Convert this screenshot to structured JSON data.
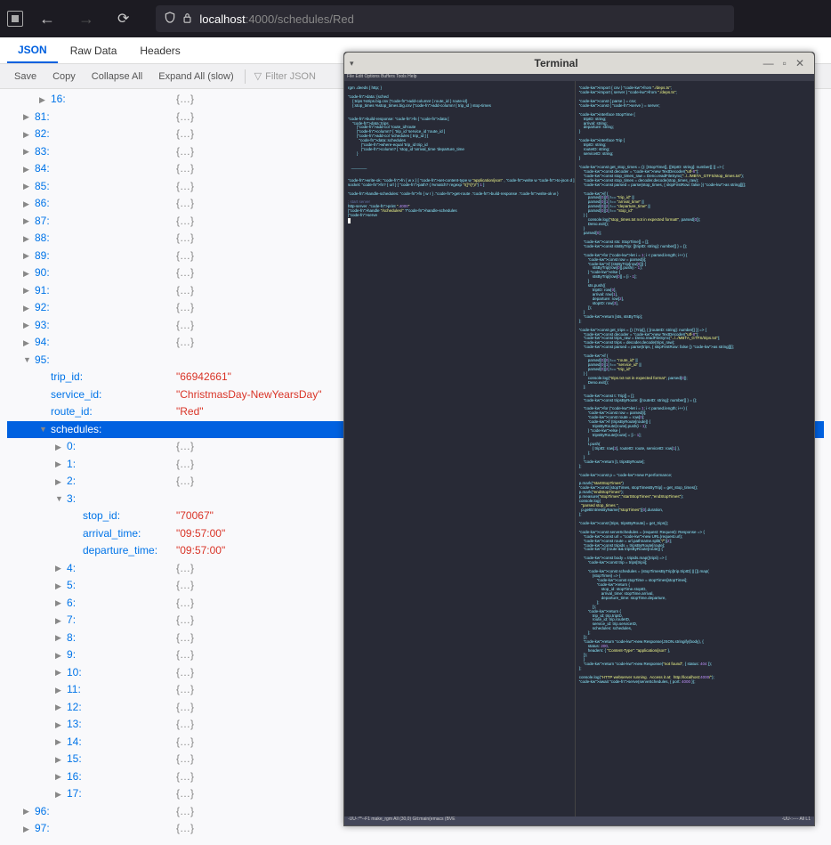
{
  "browser": {
    "url_host": "localhost",
    "url_port": ":4000",
    "url_path": "/schedules/Red"
  },
  "tabs": {
    "json": "JSON",
    "raw": "Raw Data",
    "headers": "Headers"
  },
  "actions": {
    "save": "Save",
    "copy": "Copy",
    "collapse": "Collapse All",
    "expand": "Expand All (slow)",
    "filter_placeholder": "Filter JSON"
  },
  "tree": {
    "collapsed_top": [
      {
        "idx": "16",
        "indent": 2
      }
    ],
    "collapsed_seq1": [
      "81",
      "82",
      "83",
      "84",
      "85",
      "86",
      "87",
      "88",
      "89",
      "90",
      "91",
      "92",
      "93",
      "94"
    ],
    "expanded95": {
      "idx": "95",
      "trip_id_k": "trip_id",
      "trip_id_v": "\"66942661\"",
      "service_id_k": "service_id",
      "service_id_v": "\"ChristmasDay-NewYearsDay\"",
      "route_id_k": "route_id",
      "route_id_v": "\"Red\"",
      "schedules_k": "schedules"
    },
    "sched_collapsed1": [
      "0",
      "1",
      "2"
    ],
    "sched3": {
      "idx": "3",
      "stop_id_k": "stop_id",
      "stop_id_v": "\"70067\"",
      "arrival_k": "arrival_time",
      "arrival_v": "\"09:57:00\"",
      "departure_k": "departure_time",
      "departure_v": "\"09:57:00\""
    },
    "sched_collapsed2": [
      "4",
      "5",
      "6",
      "7",
      "8",
      "9",
      "10",
      "11",
      "12",
      "13",
      "14",
      "15",
      "16",
      "17"
    ],
    "collapsed_seq2": [
      "96",
      "97"
    ],
    "placeholder": "{…}"
  },
  "terminal": {
    "title": "Terminal",
    "menu": "File Edit Options Buffers Tools Help",
    "statusbar_left": "-UU-:**--F1  make_rgm    All (30,0)   Git:main(emacs  (BVE",
    "statusbar_right": "                                    -UU-:----  All L1",
    "left_code": "rgm .deeds { http; }\n\ndata: {sched\n    {:trips %trips.big.csv |add-column! { route_id } route-id}\n    {:stop_times %stop_times.big.csv |add-column! { trip_id } stop-times\n\n\nbuild-response: fn { data [\n    data::trips\n        |add-col 'route_id'route\n        |column? [ 'trip_id 'service_id 'route_id ]\n        |add-col 'schedules [ trip_id ] {\n          data::schedules\n            |where-equal 'trip_id trip_id\n            |column? [ 'stop_id 'arrival_time 'departure_time\n        }\n\n\n   _______\n\n\nwrite-ok: fn { w x } [ set-content-type w \"application/json\" , write w to-json d ]\nsocket: fn? { url } [ path? (.%match? regexp \"/([^/]*)/\") 1 ]\n\nhandle-schedules: fn { w r } .get-route .build-response .write-ok w }\n\n; start server\nhttp-server .print \".4000\"\n|handle \"/schedules/\" ?handle-schedules\n|serve\n",
    "right_code": "import { csv } from \"./deps.ts\";\nimport { server } from \"./deps.ts\";\n\nconst { parse } = csv;\nconst { serve } = server;\n\ninterface StopTime {\n    tripID: string;\n    arrival: string;\n    departure: string;\n}\n\ninterface Trip {\n    tripID: string;\n    routeID: string;\n    serviceID: string;\n}\n\nconst get_stop_times = (): [StopTime[], {[tripID: string]: number[] }] => {\n    const decoder = new TextDecoder(\"utf-8\");\n    const stop_times_raw = Deno.readFileSync(\"../../MBTA_GTFS/stop_times.txt\");\n    const stop_times = decoder.decode(stop_times_raw);\n    const parsed = parse(stop_times, { skipFirstRow: false }) as string[][];\n\n    if (\n        parsed[0][0] !== \"trip_id\" ||\n        parsed[0][1] !== \"arrival_time\" ||\n        parsed[0][2] !== \"departure_time\" ||\n        parsed[0][3] !== \"stop_id\"\n    ) {\n        console.log(\"stop_times.txt not in expected format!\", parsed[0]);\n        Deno.exit();\n    }\n    parsed[0];\n\n    const sts: StopTime[] = [];\n    const stsByTrip: {[tripID: string]: number[] } = {};\n\n    for (let i = 1; i < parsed.length; i++) {\n        const row = parsed[i];\n        if (stsByTrip[row[0]]) {\n            stsByTrip[row[0]].push(i - 1);\n        } else {\n            stsByTrip[row[0]] = [i - 1];\n        }\n        sts.push({\n            tripID: row[0],\n            arrival: row[1],\n            departure: row[2],\n            stopID: row[3],\n        });\n    }\n    return [sts, stsByTrip];\n};\n\nconst get_trips = (): [Trip[], { [routeID: string]: number[] }] => {\n    const decoder = new TextDecoder(\"utf-8\");\n    const trips_raw = Deno.readFileSync(\"../../MBTA_GTFS/trips.txt\");\n    const trips = decoder.decode(trips_raw);\n    const parsed = parse(trips, { skipFirstRow: false }) as string[][];\n\n    if (\n        parsed[0][0] !== \"route_id\" ||\n        parsed[0][1] !== \"service_id\" ||\n        parsed[0][2] !== \"trip_id\"\n    ) {\n        console.log(\"trips.txt not in expected format\", parsed[0]);\n        Deno.exit();\n    };\n\n    const t: Trip[] = [];\n    const tripsByRoute: {[routeID: string]: number[] } = {};\n\n    for (let i = 1; i < parsed.length; i++) {\n        const row = parsed[i];\n        const route = row[0];\n        if (tripsByRoute[route]) {\n            tripsByRoute[route].push(i - 1);\n        } else {\n            tripsByRoute[route] = [i - 1];\n        }\n        t.push(\n            { tripID: row[2], routeID: route, serviceID: row[1] },\n        );\n    }\n    return [t, tripsByRoute];\n};\n\nconst p = new P.performance;\n\np.mark(\"startStopTimes\")\nconst [stopTimes, stopTimesByTrip] = get_stop_times();\np.mark(\"endStopTimes\");\np.measure(\"stopTimes\",\"startStopTimes\",\"endStopTimes\");\nconsole.log(\n  \"parsed stop_times \",\n  p.getEntriesByName(\"stopTimes\")[0].duration,\n);\n\nconst [trips, tripsByRoute] = get_trips();\n\nconst serveSchedules = (request: Request): Response => {\n    const url = new URL(request.url);\n    const route = url.pathname.split(\"/\")[2];\n    const tripids = tripsByRoute[route];\n    if (route && tripsByRoute[route]) {\n\n    const body = tripids.map((tripii) => {\n        const trip = trips[tripii];\n\n        const schedules = (stopTimesByTrip[trip.tripID] || []).map(\n            (stopTimei) => {\n                const stopTime = stopTimes[stopTimei];\n                return {\n                    stop_id: stopTime.stopID,\n                    arrival_time: stopTime.arrival,\n                    departure_time: stopTime.departure,\n                };\n            });\n        return {\n            trip_id: trip.tripID,\n            route_id: trip.routeID,\n            service_id: trip.serviceID,\n            schedules: schedules,\n        };\n    });\n    return new Response(JSON.stringify(body), {\n        status: 200,\n        headers: { \"Content-Type\": \"application/json\" },\n    });\n    }\n    return new Response(\"not found\", { status: 404 });\n};\n\nconsole.log(\"HTTP webserver running.  Access it at:  http://localhost:4000/\");\nawait serve(serveSchedules, { port: 4000 });\n"
  }
}
